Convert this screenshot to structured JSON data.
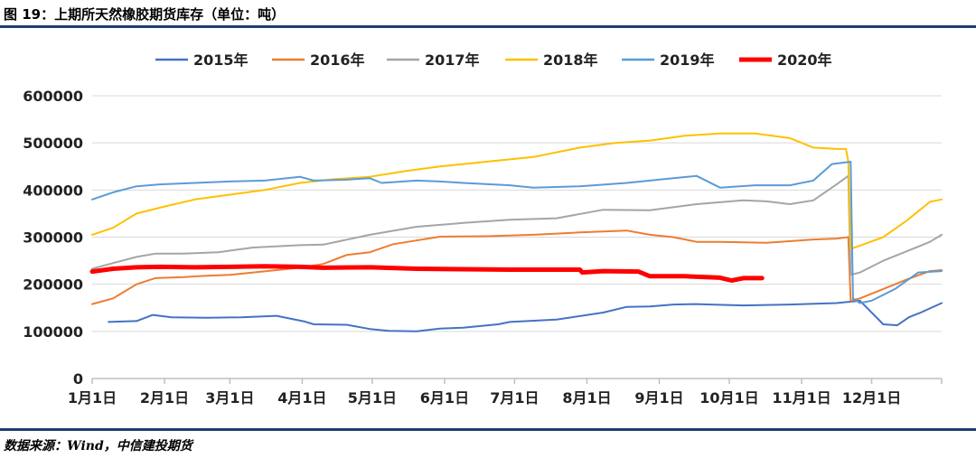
{
  "header": {
    "title": "图 19：上期所天然橡胶期货库存（单位：吨）"
  },
  "footer": {
    "source": "数据来源：Wind，中信建投期货"
  },
  "chart_data": {
    "type": "line",
    "title": "",
    "xlabel": "",
    "ylabel": "",
    "ylim": [
      0,
      600000
    ],
    "yticks": [
      "0",
      "100000",
      "200000",
      "300000",
      "400000",
      "500000",
      "600000"
    ],
    "xticks": [
      "1月1日",
      "2月1日",
      "3月1日",
      "4月1日",
      "5月1日",
      "6月1日",
      "7月1日",
      "8月1日",
      "9月1日",
      "10月1日",
      "11月1日",
      "12月1日"
    ],
    "x_unit": "day_of_year",
    "xlim": [
      1,
      365
    ],
    "grid": "horizontal",
    "legend_position": "top",
    "series": [
      {
        "name": "2015年",
        "color": "#4472c4",
        "width": 2,
        "x": [
          8,
          20,
          27,
          35,
          50,
          65,
          80,
          92,
          96,
          110,
          120,
          128,
          140,
          150,
          160,
          175,
          180,
          200,
          220,
          230,
          240,
          250,
          260,
          266,
          280,
          300,
          320,
          330,
          340,
          346,
          351,
          356,
          365
        ],
        "y": [
          120000,
          122000,
          135000,
          130000,
          129000,
          130000,
          133000,
          121000,
          115000,
          114000,
          105000,
          101000,
          100000,
          106000,
          108000,
          115000,
          120000,
          125000,
          140000,
          152000,
          153000,
          157000,
          158000,
          157000,
          155000,
          157000,
          160000,
          165000,
          115000,
          113000,
          130000,
          140000,
          160000
        ]
      },
      {
        "name": "2016年",
        "color": "#ed7d31",
        "width": 2,
        "x": [
          1,
          10,
          20,
          28,
          40,
          50,
          60,
          70,
          90,
          100,
          110,
          120,
          130,
          150,
          170,
          190,
          210,
          230,
          240,
          250,
          260,
          270,
          290,
          310,
          320,
          325,
          326,
          330,
          340,
          350,
          360,
          365
        ],
        "y": [
          158000,
          170000,
          200000,
          213000,
          215000,
          218000,
          220000,
          225000,
          235000,
          243000,
          262000,
          268000,
          285000,
          301000,
          302000,
          305000,
          310000,
          314000,
          305000,
          300000,
          290000,
          290000,
          288000,
          295000,
          297000,
          300000,
          165000,
          170000,
          190000,
          210000,
          228000,
          230000
        ]
      },
      {
        "name": "2017年",
        "color": "#a5a5a5",
        "width": 2,
        "x": [
          1,
          10,
          20,
          28,
          40,
          55,
          70,
          90,
          100,
          120,
          140,
          160,
          180,
          200,
          220,
          240,
          260,
          280,
          290,
          300,
          310,
          320,
          325,
          326,
          330,
          340,
          350,
          360,
          365
        ],
        "y": [
          233000,
          245000,
          258000,
          265000,
          265000,
          268000,
          278000,
          283000,
          284000,
          305000,
          322000,
          330000,
          337000,
          340000,
          358000,
          357000,
          370000,
          378000,
          376000,
          370000,
          378000,
          412000,
          430000,
          220000,
          225000,
          250000,
          270000,
          290000,
          305000
        ]
      },
      {
        "name": "2018年",
        "color": "#ffc000",
        "width": 2,
        "x": [
          1,
          10,
          20,
          32,
          45,
          60,
          75,
          90,
          105,
          120,
          135,
          150,
          170,
          190,
          210,
          225,
          240,
          255,
          270,
          285,
          300,
          310,
          320,
          324,
          325,
          326,
          330,
          340,
          350,
          360,
          365
        ],
        "y": [
          305000,
          320000,
          350000,
          365000,
          380000,
          390000,
          400000,
          415000,
          423000,
          428000,
          440000,
          450000,
          460000,
          470000,
          490000,
          500000,
          505000,
          515000,
          520000,
          520000,
          510000,
          490000,
          487000,
          487000,
          460000,
          275000,
          282000,
          300000,
          335000,
          375000,
          380000
        ]
      },
      {
        "name": "2019年",
        "color": "#5b9bd5",
        "width": 2,
        "x": [
          1,
          10,
          20,
          30,
          45,
          60,
          75,
          90,
          96,
          110,
          120,
          125,
          140,
          150,
          160,
          180,
          190,
          210,
          230,
          250,
          260,
          270,
          285,
          300,
          310,
          318,
          326,
          327,
          330,
          335,
          345,
          355,
          365
        ],
        "y": [
          380000,
          395000,
          408000,
          412000,
          415000,
          418000,
          420000,
          428000,
          420000,
          422000,
          425000,
          415000,
          420000,
          418000,
          415000,
          410000,
          405000,
          408000,
          415000,
          425000,
          430000,
          405000,
          410000,
          410000,
          420000,
          455000,
          460000,
          170000,
          160000,
          165000,
          190000,
          225000,
          228000
        ]
      },
      {
        "name": "2020年",
        "color": "#ff0000",
        "width": 5,
        "x": [
          1,
          10,
          20,
          30,
          45,
          60,
          75,
          90,
          100,
          120,
          140,
          160,
          180,
          200,
          210,
          211,
          220,
          235,
          240,
          255,
          270,
          275,
          280,
          288
        ],
        "y": [
          227000,
          233000,
          236000,
          237000,
          236000,
          237000,
          238000,
          237000,
          235000,
          236000,
          233000,
          232000,
          231000,
          231000,
          231000,
          225000,
          228000,
          227000,
          217000,
          217000,
          214000,
          208000,
          213000,
          213000
        ]
      }
    ]
  }
}
